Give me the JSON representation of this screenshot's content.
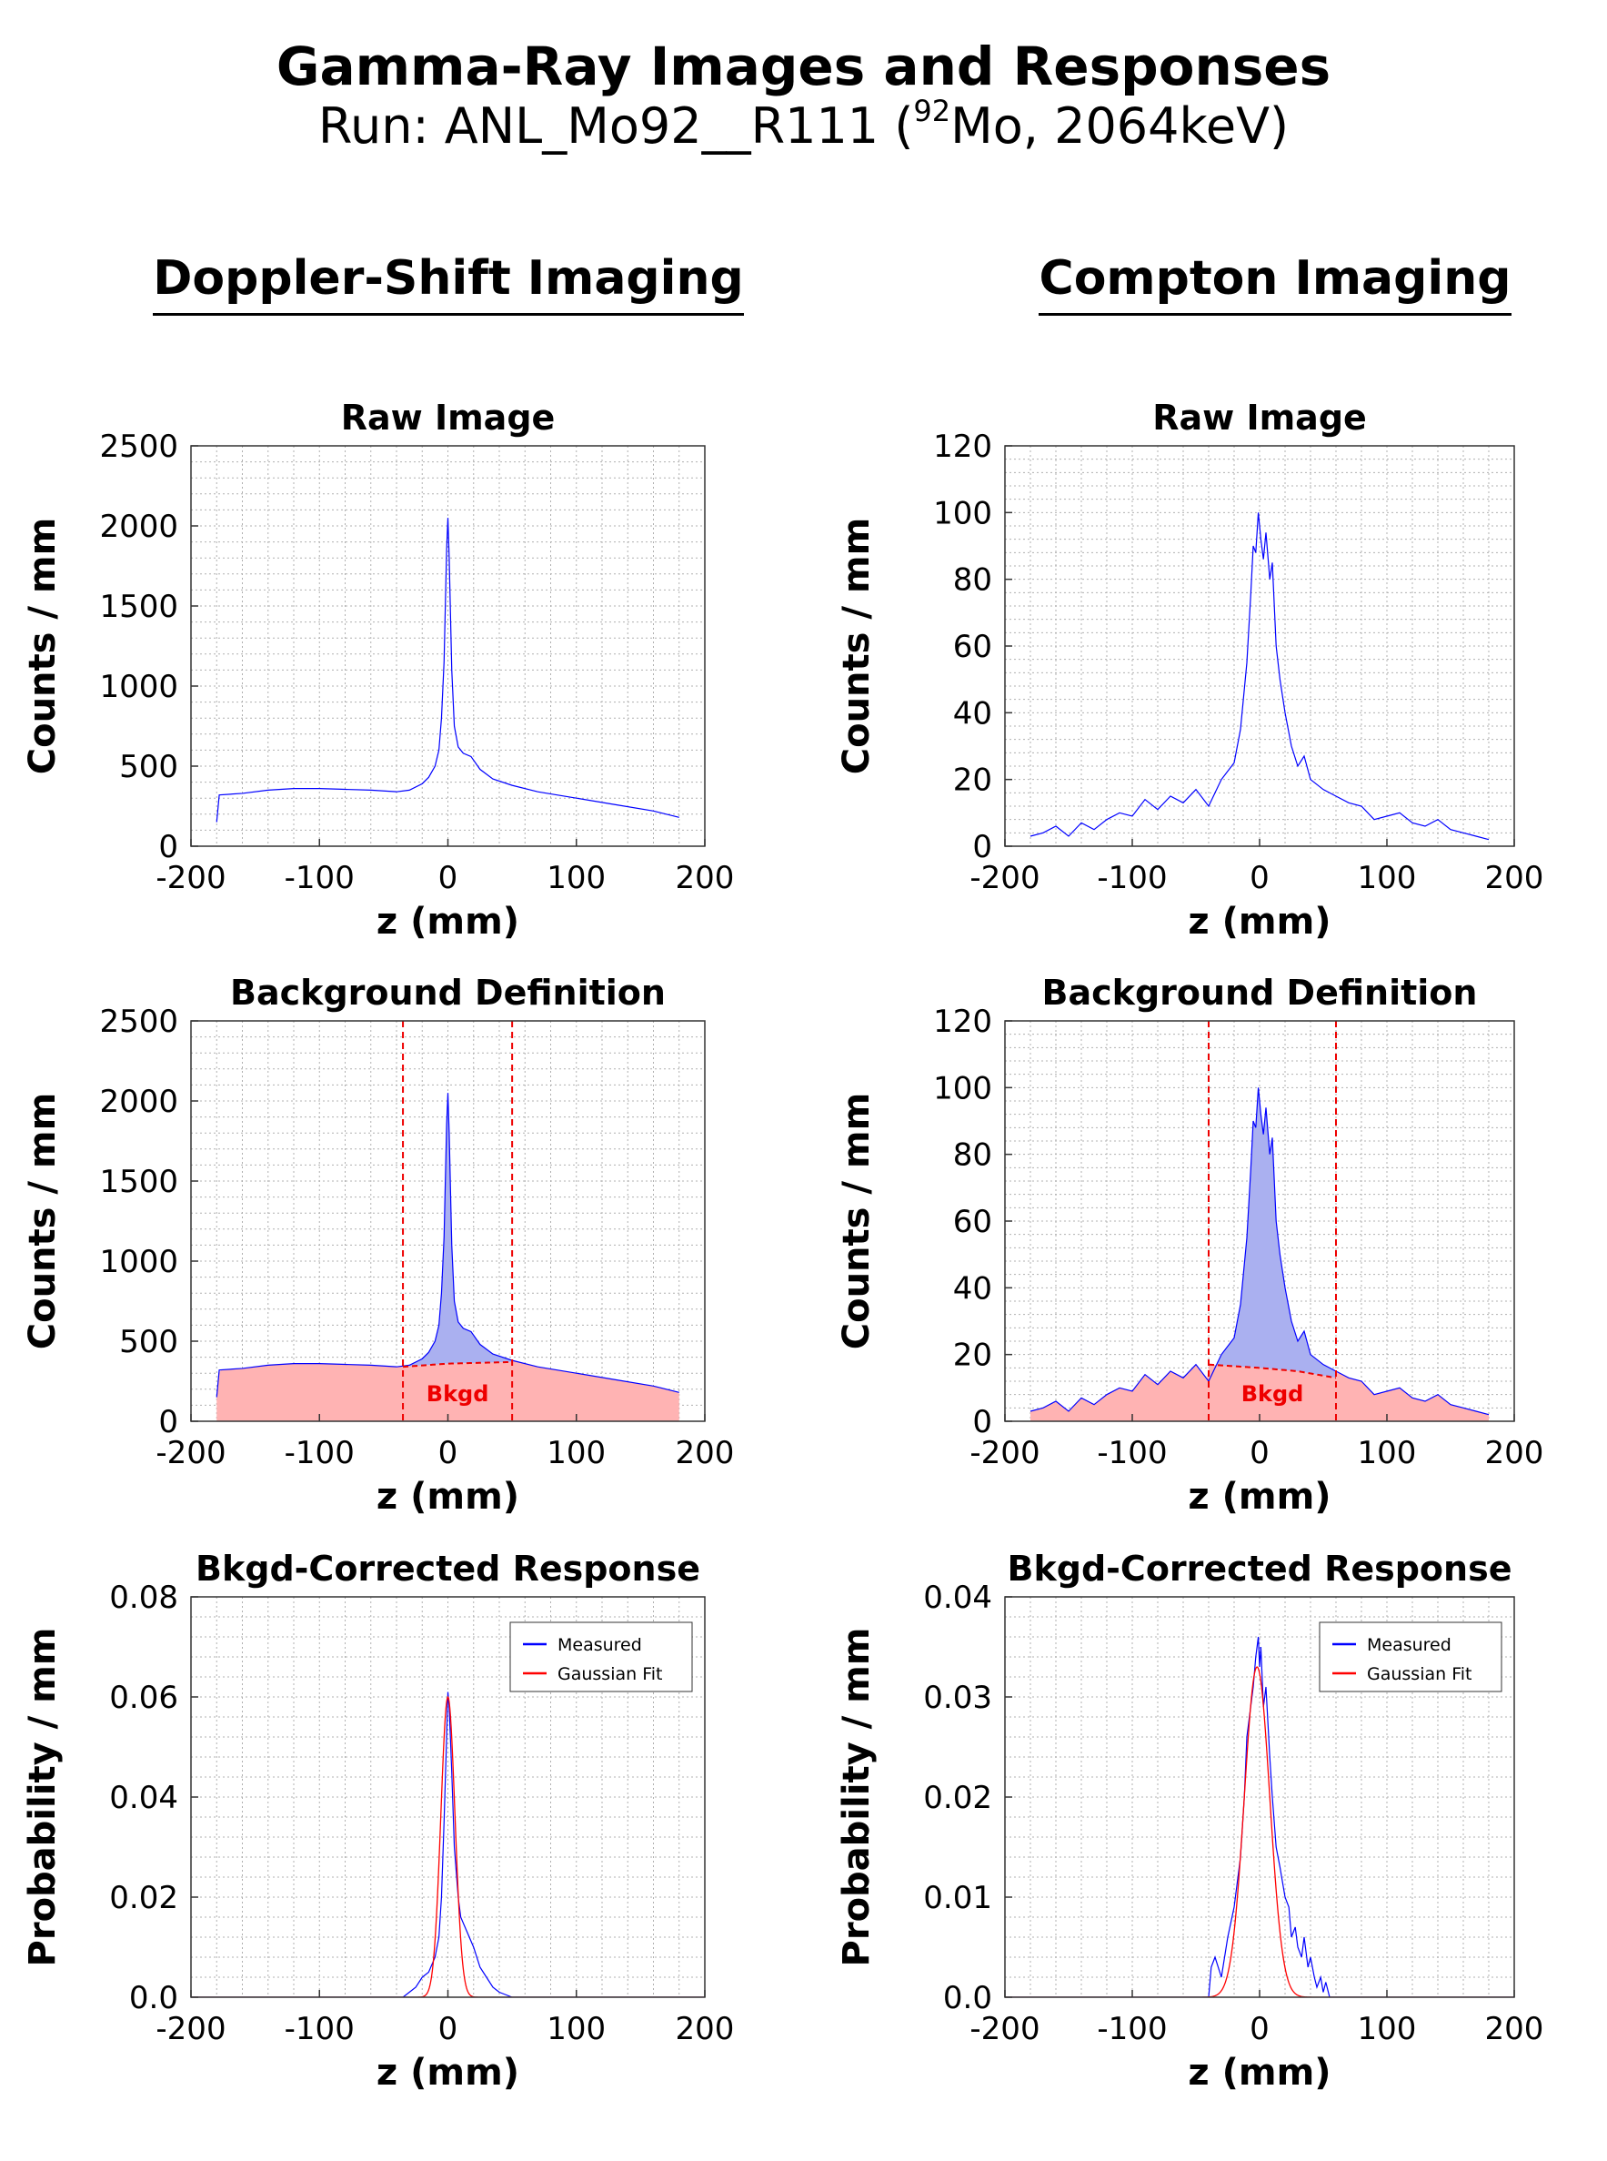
{
  "header": {
    "title": "Gamma-Ray Images and Responses",
    "subtitle_prefix": "Run: ANL_Mo92__R111 (",
    "subtitle_sup": "92",
    "subtitle_suffix": "Mo, 2064keV)"
  },
  "columns": {
    "left_heading": "Doppler-Shift Imaging",
    "right_heading": "Compton Imaging"
  },
  "colors": {
    "measured": "#0000ff",
    "fit": "#ff0000",
    "signal_fill": "#aab0f0",
    "bkgd_fill": "#ffb3b3",
    "bkgd_line": "#ee0000",
    "grid": "#b0b0b0"
  },
  "chart_data": [
    {
      "id": "doppler-raw",
      "type": "line",
      "title": "Raw Image",
      "xlabel": "z (mm)",
      "ylabel": "Counts / mm",
      "xlim": [
        -200,
        200
      ],
      "ylim": [
        0,
        2500
      ],
      "xticks": [
        -200,
        -100,
        0,
        100,
        200
      ],
      "yticks": [
        0,
        500,
        1000,
        1500,
        2000,
        2500
      ],
      "ytick_labels": [
        "0",
        "500",
        "1000",
        "1500",
        "2000",
        "2500"
      ],
      "grid": true,
      "series": [
        {
          "name": "Measured",
          "style": "line",
          "color": "#0000ff",
          "x": [
            -180,
            -178,
            -160,
            -140,
            -120,
            -100,
            -80,
            -60,
            -40,
            -30,
            -20,
            -15,
            -10,
            -7,
            -5,
            -3,
            -2,
            -1,
            0,
            1,
            2,
            3,
            5,
            8,
            12,
            18,
            25,
            35,
            50,
            70,
            100,
            130,
            160,
            180
          ],
          "y": [
            150,
            320,
            330,
            350,
            360,
            360,
            355,
            350,
            340,
            350,
            390,
            430,
            500,
            600,
            800,
            1150,
            1500,
            1850,
            2050,
            1800,
            1450,
            1100,
            750,
            620,
            580,
            560,
            480,
            420,
            380,
            340,
            300,
            260,
            220,
            180
          ]
        }
      ]
    },
    {
      "id": "compton-raw",
      "type": "line",
      "title": "Raw Image",
      "xlabel": "z (mm)",
      "ylabel": "Counts / mm",
      "xlim": [
        -200,
        200
      ],
      "ylim": [
        0,
        120
      ],
      "xticks": [
        -200,
        -100,
        0,
        100,
        200
      ],
      "yticks": [
        0,
        20,
        40,
        60,
        80,
        100,
        120
      ],
      "ytick_labels": [
        "0",
        "20",
        "40",
        "60",
        "80",
        "100",
        "120"
      ],
      "grid": true,
      "series": [
        {
          "name": "Measured",
          "style": "line",
          "color": "#0000ff",
          "x": [
            -180,
            -170,
            -160,
            -150,
            -140,
            -130,
            -120,
            -110,
            -100,
            -90,
            -80,
            -70,
            -60,
            -50,
            -40,
            -30,
            -20,
            -15,
            -10,
            -7,
            -5,
            -3,
            -1,
            1,
            3,
            5,
            8,
            10,
            13,
            16,
            20,
            25,
            30,
            35,
            40,
            50,
            60,
            70,
            80,
            90,
            100,
            110,
            120,
            130,
            140,
            150,
            160,
            170,
            180
          ],
          "y": [
            3,
            4,
            6,
            3,
            7,
            5,
            8,
            10,
            9,
            14,
            11,
            15,
            13,
            17,
            12,
            20,
            25,
            35,
            55,
            75,
            90,
            88,
            100,
            92,
            86,
            94,
            80,
            85,
            60,
            50,
            40,
            30,
            24,
            27,
            20,
            17,
            15,
            13,
            12,
            8,
            9,
            10,
            7,
            6,
            8,
            5,
            4,
            3,
            2
          ]
        }
      ]
    },
    {
      "id": "doppler-bkgd",
      "type": "area",
      "title": "Background Definition",
      "xlabel": "z (mm)",
      "ylabel": "Counts / mm",
      "xlim": [
        -200,
        200
      ],
      "ylim": [
        0,
        2500
      ],
      "xticks": [
        -200,
        -100,
        0,
        100,
        200
      ],
      "yticks": [
        0,
        500,
        1000,
        1500,
        2000,
        2500
      ],
      "ytick_labels": [
        "0",
        "500",
        "1000",
        "1500",
        "2000",
        "2500"
      ],
      "grid": true,
      "annotation": "Bkgd",
      "window": [
        -35,
        50
      ],
      "series": [
        {
          "name": "Measured",
          "style": "signal",
          "color": "#0000ff",
          "x": [
            -180,
            -178,
            -160,
            -140,
            -120,
            -100,
            -80,
            -60,
            -40,
            -30,
            -20,
            -15,
            -10,
            -7,
            -5,
            -3,
            -2,
            -1,
            0,
            1,
            2,
            3,
            5,
            8,
            12,
            18,
            25,
            35,
            50,
            70,
            100,
            130,
            160,
            180
          ],
          "y": [
            150,
            320,
            330,
            350,
            360,
            360,
            355,
            350,
            340,
            350,
            390,
            430,
            500,
            600,
            800,
            1150,
            1500,
            1850,
            2050,
            1800,
            1450,
            1100,
            750,
            620,
            580,
            560,
            480,
            420,
            380,
            340,
            300,
            260,
            220,
            180
          ]
        },
        {
          "name": "Bkgd",
          "style": "background",
          "color": "#ee0000",
          "x": [
            -180,
            -150,
            -100,
            -50,
            -35,
            0,
            50,
            100,
            150,
            180
          ],
          "y": [
            320,
            350,
            360,
            345,
            340,
            360,
            370,
            300,
            240,
            180
          ]
        }
      ]
    },
    {
      "id": "compton-bkgd",
      "type": "area",
      "title": "Background Definition",
      "xlabel": "z (mm)",
      "ylabel": "Counts / mm",
      "xlim": [
        -200,
        200
      ],
      "ylim": [
        0,
        120
      ],
      "xticks": [
        -200,
        -100,
        0,
        100,
        200
      ],
      "yticks": [
        0,
        20,
        40,
        60,
        80,
        100,
        120
      ],
      "ytick_labels": [
        "0",
        "20",
        "40",
        "60",
        "80",
        "100",
        "120"
      ],
      "grid": true,
      "annotation": "Bkgd",
      "window": [
        -40,
        60
      ],
      "series": [
        {
          "name": "Measured",
          "style": "signal",
          "color": "#0000ff",
          "x": [
            -180,
            -170,
            -160,
            -150,
            -140,
            -130,
            -120,
            -110,
            -100,
            -90,
            -80,
            -70,
            -60,
            -50,
            -40,
            -30,
            -20,
            -15,
            -10,
            -7,
            -5,
            -3,
            -1,
            1,
            3,
            5,
            8,
            10,
            13,
            16,
            20,
            25,
            30,
            35,
            40,
            50,
            60,
            70,
            80,
            90,
            100,
            110,
            120,
            130,
            140,
            150,
            160,
            170,
            180
          ],
          "y": [
            3,
            4,
            6,
            3,
            7,
            5,
            8,
            10,
            9,
            14,
            11,
            15,
            13,
            17,
            12,
            20,
            25,
            35,
            55,
            75,
            90,
            88,
            100,
            92,
            86,
            94,
            80,
            85,
            60,
            50,
            40,
            30,
            24,
            27,
            20,
            17,
            15,
            13,
            12,
            8,
            9,
            10,
            7,
            6,
            8,
            5,
            4,
            3,
            2
          ]
        },
        {
          "name": "Bkgd",
          "style": "background",
          "color": "#ee0000",
          "x": [
            -180,
            -150,
            -100,
            -60,
            -40,
            0,
            30,
            60,
            100,
            150,
            180
          ],
          "y": [
            3,
            5,
            10,
            14,
            17,
            16,
            15,
            13,
            9,
            5,
            2
          ]
        }
      ]
    },
    {
      "id": "doppler-response",
      "type": "line",
      "title": "Bkgd-Corrected Response",
      "xlabel": "z (mm)",
      "ylabel": "Probability / mm",
      "xlim": [
        -200,
        200
      ],
      "ylim": [
        0,
        0.08
      ],
      "xticks": [
        -200,
        -100,
        0,
        100,
        200
      ],
      "yticks": [
        0,
        0.02,
        0.04,
        0.06,
        0.08
      ],
      "ytick_labels": [
        "0.0",
        "0.02",
        "0.04",
        "0.06",
        "0.08"
      ],
      "grid": true,
      "legend": {
        "position": "top-right",
        "entries": [
          "Measured",
          "Gaussian Fit"
        ]
      },
      "series": [
        {
          "name": "Measured",
          "style": "line",
          "color": "#0000ff",
          "x": [
            -200,
            -35,
            -30,
            -25,
            -20,
            -15,
            -10,
            -7,
            -5,
            -3,
            -1,
            0,
            1,
            3,
            5,
            8,
            10,
            15,
            20,
            25,
            30,
            35,
            40,
            45,
            50,
            200
          ],
          "y": [
            0,
            0,
            0.001,
            0.002,
            0.004,
            0.005,
            0.008,
            0.012,
            0.02,
            0.035,
            0.052,
            0.061,
            0.058,
            0.045,
            0.03,
            0.02,
            0.016,
            0.013,
            0.01,
            0.006,
            0.004,
            0.002,
            0.001,
            0.0005,
            0,
            0
          ]
        },
        {
          "name": "Gaussian Fit",
          "style": "gaussian",
          "color": "#ff0000",
          "amplitude": 0.06,
          "mean": 0,
          "sigma": 5.5
        }
      ]
    },
    {
      "id": "compton-response",
      "type": "line",
      "title": "Bkgd-Corrected Response",
      "xlabel": "z (mm)",
      "ylabel": "Probability / mm",
      "xlim": [
        -200,
        200
      ],
      "ylim": [
        0,
        0.04
      ],
      "xticks": [
        -200,
        -100,
        0,
        100,
        200
      ],
      "yticks": [
        0,
        0.01,
        0.02,
        0.03,
        0.04
      ],
      "ytick_labels": [
        "0.0",
        "0.01",
        "0.02",
        "0.03",
        "0.04"
      ],
      "grid": true,
      "legend": {
        "position": "top-right",
        "entries": [
          "Measured",
          "Gaussian Fit"
        ]
      },
      "series": [
        {
          "name": "Measured",
          "style": "line",
          "color": "#0000ff",
          "x": [
            -200,
            -40,
            -38,
            -35,
            -30,
            -25,
            -20,
            -15,
            -12,
            -10,
            -8,
            -5,
            -3,
            -1,
            0,
            1,
            3,
            5,
            8,
            10,
            13,
            16,
            20,
            23,
            25,
            28,
            30,
            33,
            35,
            38,
            40,
            43,
            45,
            48,
            50,
            52,
            55,
            200
          ],
          "y": [
            0,
            0,
            0.003,
            0.004,
            0.002,
            0.006,
            0.009,
            0.014,
            0.02,
            0.026,
            0.028,
            0.031,
            0.034,
            0.036,
            0.033,
            0.035,
            0.029,
            0.031,
            0.024,
            0.02,
            0.015,
            0.013,
            0.01,
            0.009,
            0.006,
            0.007,
            0.005,
            0.004,
            0.006,
            0.003,
            0.004,
            0.002,
            0.001,
            0.002,
            0.0005,
            0.0015,
            0,
            0
          ]
        },
        {
          "name": "Gaussian Fit",
          "style": "gaussian",
          "color": "#ff0000",
          "amplitude": 0.033,
          "mean": -2,
          "sigma": 10
        }
      ]
    }
  ]
}
